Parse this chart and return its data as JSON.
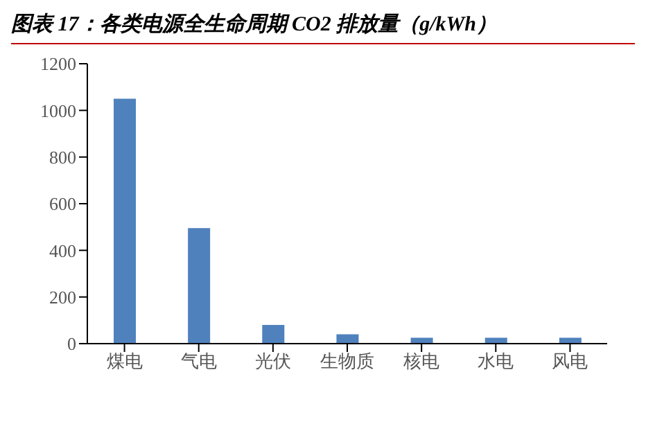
{
  "chart_data": {
    "type": "bar",
    "title": "图表 17：各类电源全生命周期 CO2 排放量（g/kWh）",
    "categories": [
      "煤电",
      "气电",
      "光伏",
      "生物质",
      "核电",
      "水电",
      "风电"
    ],
    "values": [
      1050,
      495,
      80,
      40,
      25,
      25,
      25
    ],
    "color": "#4f81bd",
    "ylim": [
      0,
      1200
    ],
    "yticks": [
      0,
      200,
      400,
      600,
      800,
      1000,
      1200
    ],
    "grid": false,
    "legend": false
  }
}
